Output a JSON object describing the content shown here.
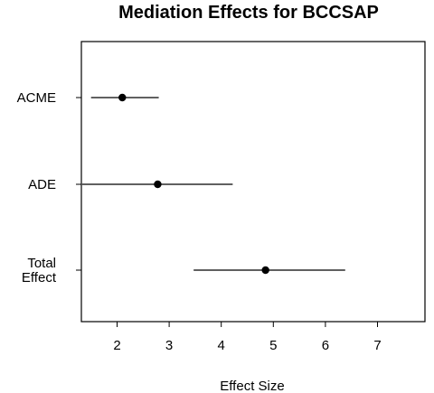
{
  "chart_data": {
    "type": "forest",
    "title": "Mediation Effects for BCCSAP",
    "xlabel": "Effect Size",
    "ylabel": "",
    "x_ticks": [
      2,
      3,
      4,
      5,
      6,
      7
    ],
    "xlim": [
      1.33,
      7.88
    ],
    "grid": false,
    "colors": {
      "axis": "#000000",
      "marker": "#000000",
      "background": "#ffffff"
    },
    "effects": [
      {
        "label_lines": [
          "ACME"
        ],
        "estimate": 2.1,
        "lower": 1.5,
        "upper": 2.8
      },
      {
        "label_lines": [
          "ADE"
        ],
        "estimate": 2.78,
        "lower": 1.33,
        "upper": 4.22
      },
      {
        "label_lines": [
          "Total",
          "Effect"
        ],
        "estimate": 4.85,
        "lower": 3.47,
        "upper": 6.38
      }
    ]
  }
}
